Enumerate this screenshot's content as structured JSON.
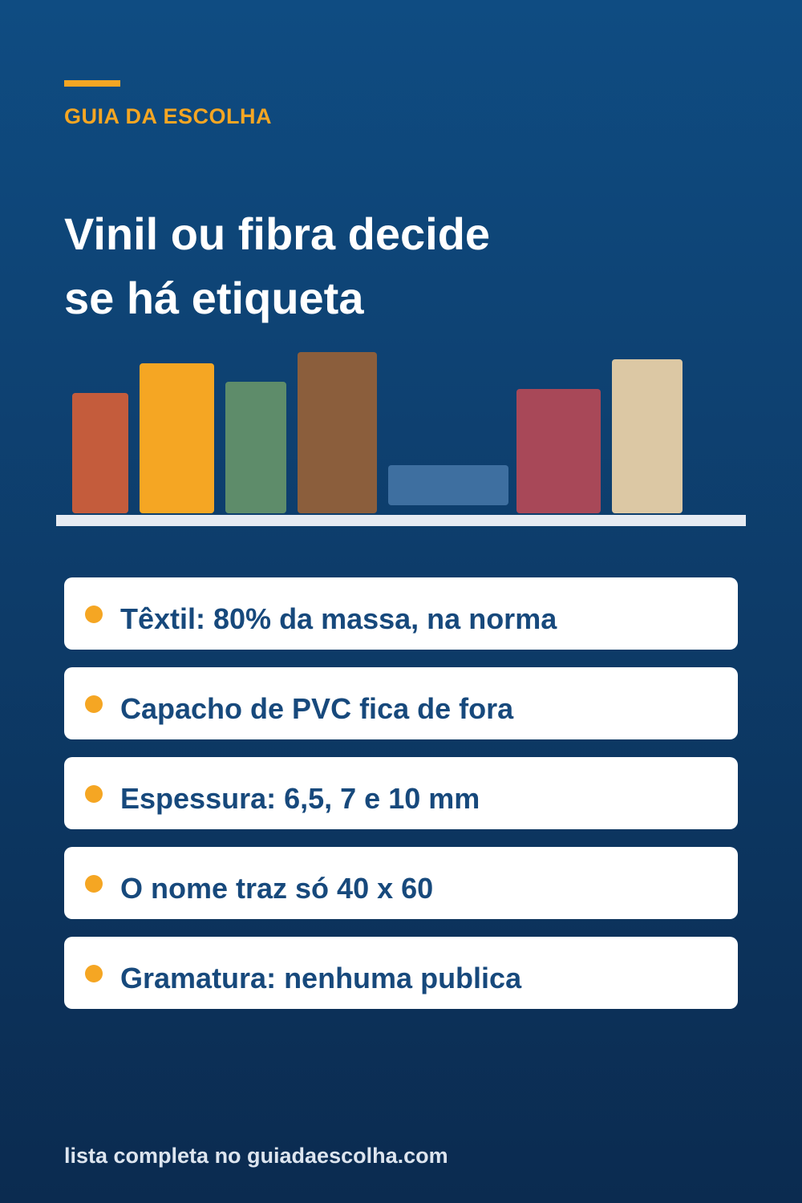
{
  "brand": "GUIA DA ESCOLHA",
  "title": [
    "Vinil ou fibra decide",
    "se há etiqueta"
  ],
  "items": [
    "Têxtil: 80% da massa, na norma",
    "Capacho de PVC fica de fora",
    "Espessura: 6,5, 7 e 10 mm",
    "O nome traz só 40 x 60",
    "Gramatura: nenhuma publica"
  ],
  "footer": "lista completa no guiadaescolha.com"
}
